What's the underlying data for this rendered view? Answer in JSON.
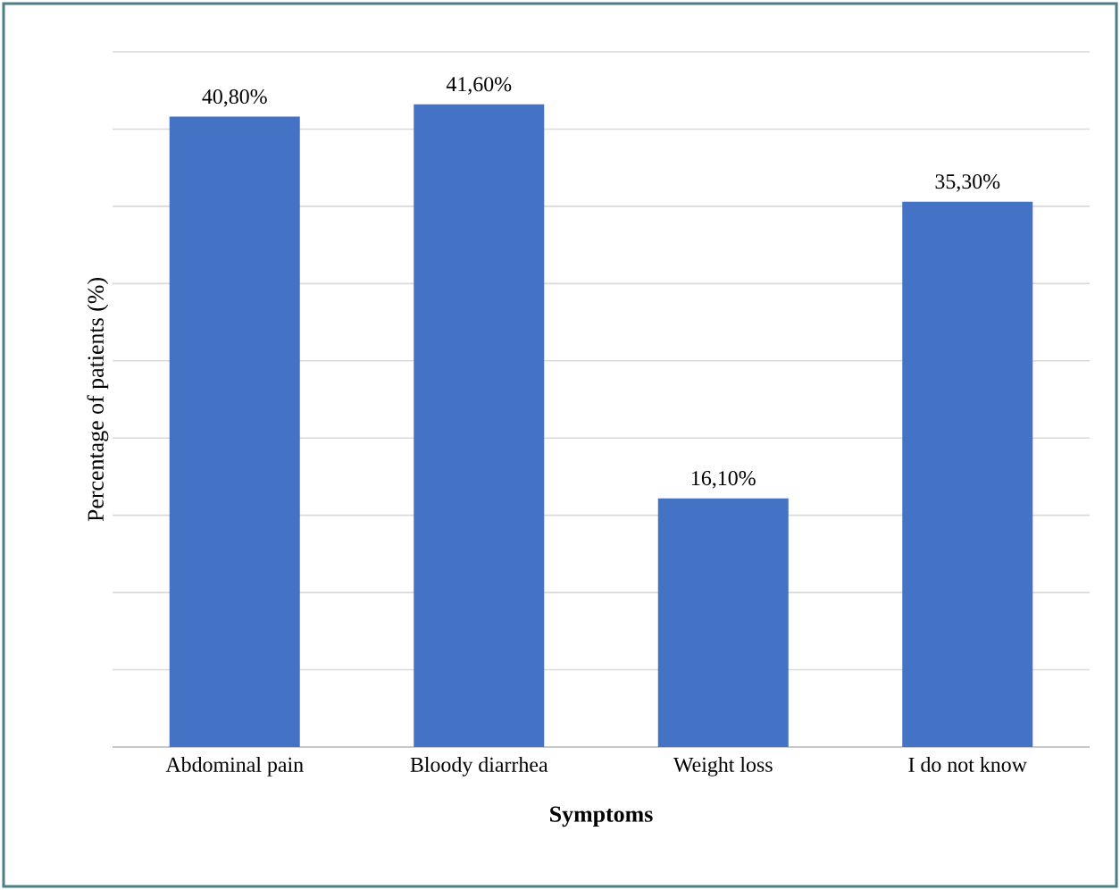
{
  "chart_data": {
    "type": "bar",
    "xlabel": "Symptoms",
    "ylabel": "Percentage of patients (%)",
    "categories": [
      "Abdominal pain",
      "Bloody diarrhea",
      "Weight loss",
      "I do not know"
    ],
    "values": [
      40.8,
      41.6,
      16.1,
      35.3
    ],
    "color": "#4472c4",
    "value_labels": [
      "40,80%",
      "41,60%",
      "16,10%",
      "35,30%"
    ],
    "ylim": [
      0,
      45
    ],
    "yticks": [
      {
        "value": 0,
        "label": null
      },
      {
        "value": 5,
        "label": null
      },
      {
        "value": 10,
        "label": null
      },
      {
        "value": 15,
        "label": null
      },
      {
        "value": 20,
        "label": null
      },
      {
        "value": 25,
        "label": null
      },
      {
        "value": 30,
        "label": null
      },
      {
        "value": 35,
        "label": null
      },
      {
        "value": 40,
        "label": null
      },
      {
        "value": 45,
        "label": null
      }
    ],
    "tick_labels": "x",
    "grid": "y"
  }
}
